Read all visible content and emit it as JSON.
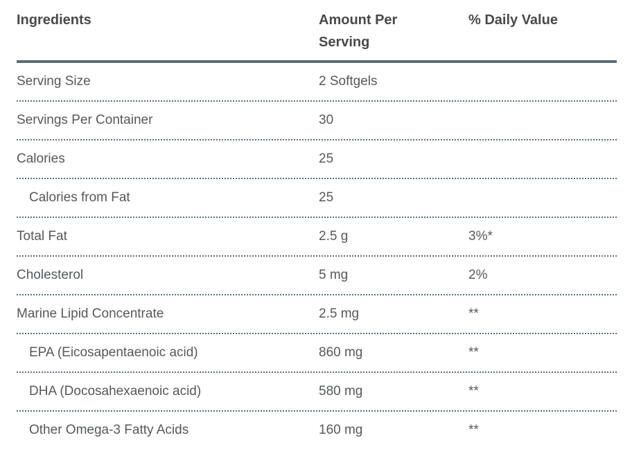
{
  "table": {
    "headers": {
      "ingredients": "Ingredients",
      "amount": "Amount Per Serving",
      "daily_value": "% Daily Value"
    },
    "rows": [
      {
        "ingredient": "Serving Size",
        "amount": "2 Softgels",
        "daily_value": "",
        "indent": false
      },
      {
        "ingredient": "Servings Per Container",
        "amount": "30",
        "daily_value": "",
        "indent": false
      },
      {
        "ingredient": "Calories",
        "amount": "25",
        "daily_value": "",
        "indent": false
      },
      {
        "ingredient": "Calories from Fat",
        "amount": "25",
        "daily_value": "",
        "indent": true
      },
      {
        "ingredient": "Total Fat",
        "amount": "2.5 g",
        "daily_value": "3%*",
        "indent": false
      },
      {
        "ingredient": "Cholesterol",
        "amount": "5 mg",
        "daily_value": "2%",
        "indent": false
      },
      {
        "ingredient": "Marine Lipid Concentrate",
        "amount": "2.5 mg",
        "daily_value": "**",
        "indent": false
      },
      {
        "ingredient": "EPA (Eicosapentaenoic acid)",
        "amount": "860 mg",
        "daily_value": "**",
        "indent": true
      },
      {
        "ingredient": "DHA (Docosahexaenoic acid)",
        "amount": "580 mg",
        "daily_value": "**",
        "indent": true
      },
      {
        "ingredient": "Other Omega-3 Fatty Acids",
        "amount": "160 mg",
        "daily_value": "**",
        "indent": true
      }
    ],
    "colors": {
      "header_text": "#494949",
      "body_text": "#55585a",
      "rule": "#5b6c74",
      "background": "#ffffff"
    }
  }
}
